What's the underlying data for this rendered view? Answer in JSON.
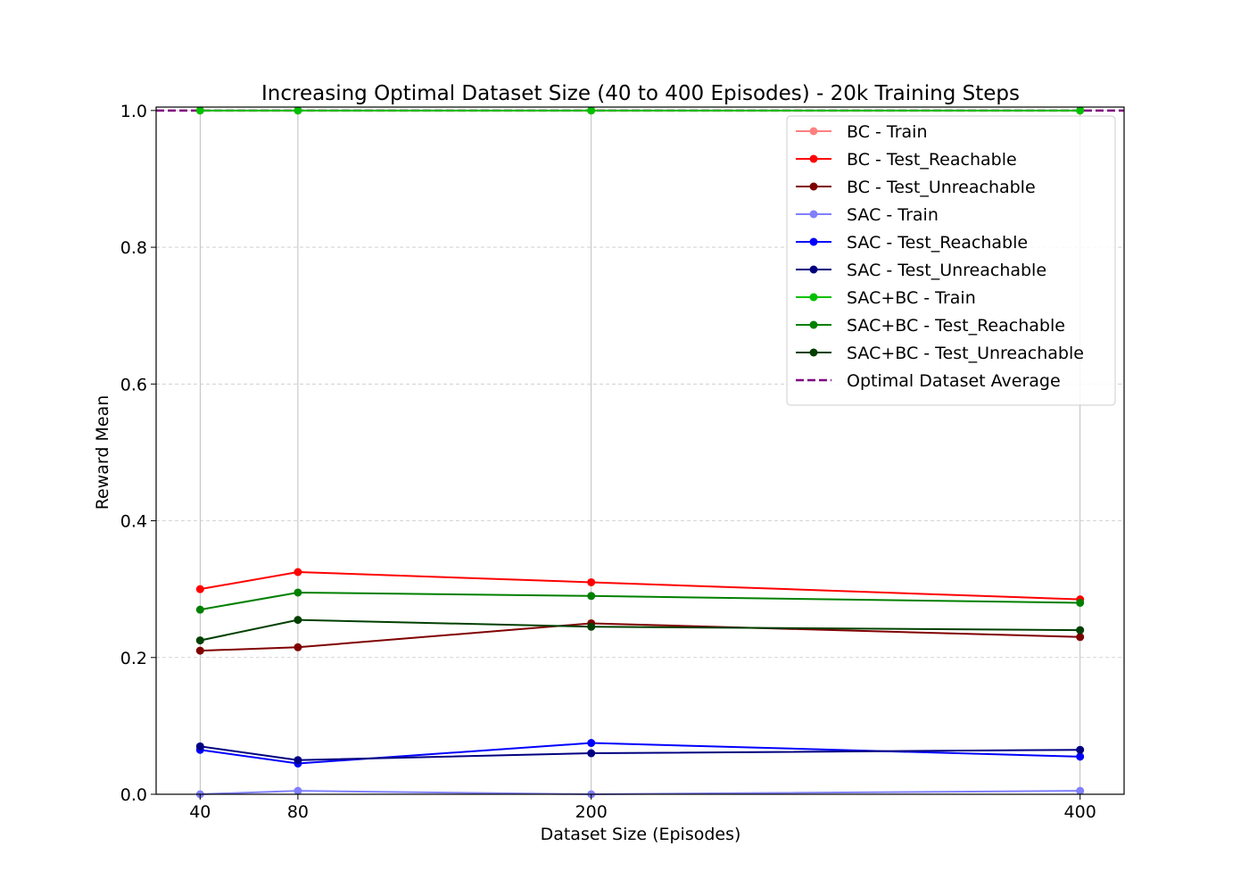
{
  "chart_data": {
    "type": "line",
    "title": "Increasing Optimal Dataset Size (40 to 400 Episodes) - 20k Training Steps",
    "xlabel": "Dataset Size (Episodes)",
    "ylabel": "Reward Mean",
    "x": [
      40,
      80,
      200,
      400
    ],
    "x_tick_labels": [
      "40",
      "80",
      "200",
      "400"
    ],
    "xlim": [
      22,
      418
    ],
    "ylim": [
      0.0,
      1.005
    ],
    "y_ticks": [
      0.0,
      0.2,
      0.4,
      0.6,
      0.8,
      1.0
    ],
    "y_tick_labels": [
      "0.0",
      "0.2",
      "0.4",
      "0.6",
      "0.8",
      "1.0"
    ],
    "grid": {
      "x": "solid-light",
      "y": "dashed-light"
    },
    "legend_position": "top-right",
    "series": [
      {
        "name": "BC - Train",
        "color": "#ff8080",
        "marker": "circle",
        "values": [
          1.0,
          1.0,
          1.0,
          1.0
        ]
      },
      {
        "name": "BC - Test_Reachable",
        "color": "#ff0000",
        "marker": "circle",
        "values": [
          0.3,
          0.325,
          0.31,
          0.285
        ]
      },
      {
        "name": "BC - Test_Unreachable",
        "color": "#800000",
        "marker": "circle",
        "values": [
          0.21,
          0.215,
          0.25,
          0.23
        ]
      },
      {
        "name": "SAC - Train",
        "color": "#8080ff",
        "marker": "circle",
        "values": [
          0.0,
          0.005,
          0.0,
          0.005
        ]
      },
      {
        "name": "SAC - Test_Reachable",
        "color": "#0000ff",
        "marker": "circle",
        "values": [
          0.065,
          0.045,
          0.075,
          0.055
        ]
      },
      {
        "name": "SAC - Test_Unreachable",
        "color": "#000080",
        "marker": "circle",
        "values": [
          0.07,
          0.05,
          0.06,
          0.065
        ]
      },
      {
        "name": "SAC+BC - Train",
        "color": "#00c000",
        "marker": "circle",
        "values": [
          1.0,
          1.0,
          1.0,
          1.0
        ]
      },
      {
        "name": "SAC+BC - Test_Reachable",
        "color": "#008000",
        "marker": "circle",
        "values": [
          0.27,
          0.295,
          0.29,
          0.28
        ]
      },
      {
        "name": "SAC+BC - Test_Unreachable",
        "color": "#004000",
        "marker": "circle",
        "values": [
          0.225,
          0.255,
          0.245,
          0.24
        ]
      }
    ],
    "reference_lines": [
      {
        "name": "Optimal Dataset Average",
        "color": "#800080",
        "style": "dashed",
        "y": 1.0
      }
    ]
  }
}
